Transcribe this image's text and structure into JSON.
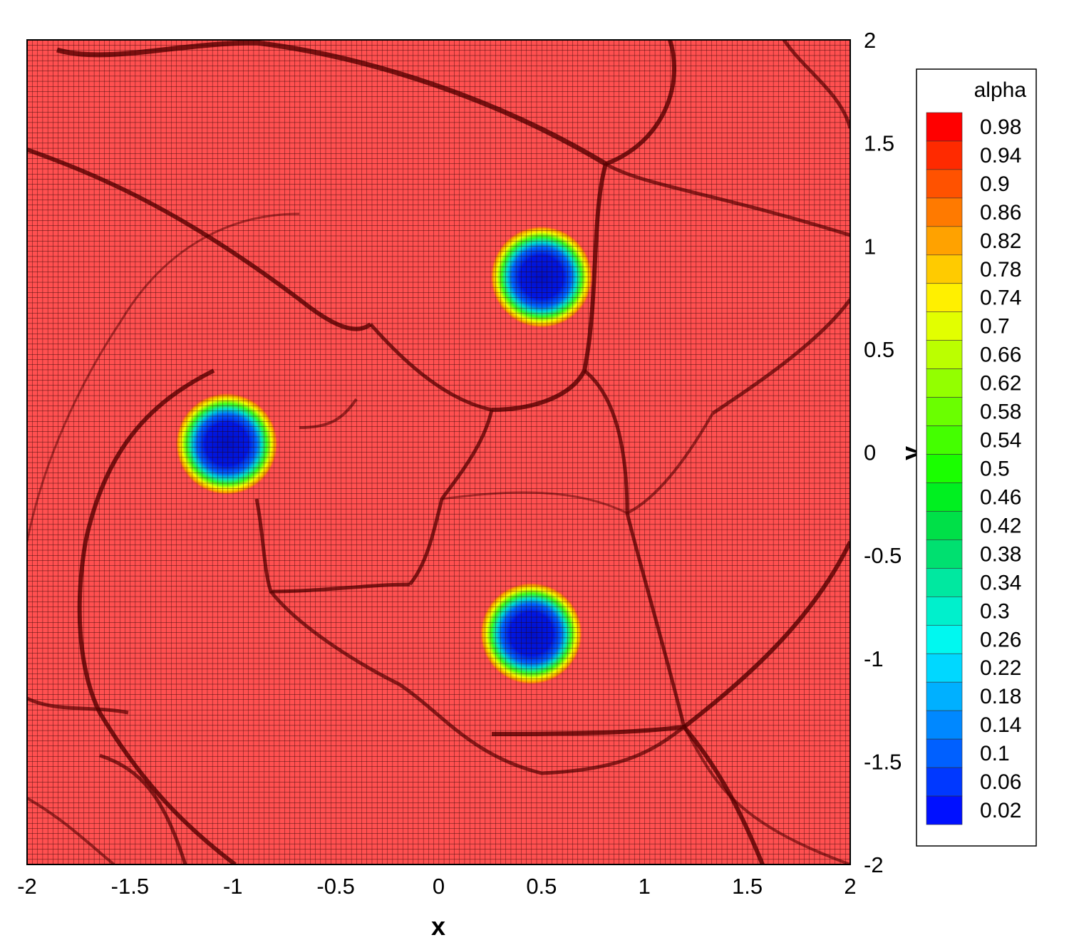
{
  "chart_data": {
    "type": "heatmap",
    "title": "",
    "xlabel": "x",
    "ylabel": "y",
    "xlim": [
      -2,
      2
    ],
    "ylim": [
      -2,
      2
    ],
    "x_ticks": [
      "-2",
      "-1.5",
      "-1",
      "-0.5",
      "0",
      "0.5",
      "1",
      "1.5",
      "2"
    ],
    "y_ticks": [
      "2",
      "1.5",
      "1",
      "0.5",
      "0",
      "-0.5",
      "-1",
      "-1.5",
      "-2"
    ],
    "grid": true,
    "grid_cells_per_axis": 160,
    "colorbar": {
      "title": "alpha",
      "placement": "right",
      "levels": [
        "0.98",
        "0.94",
        "0.9",
        "0.86",
        "0.82",
        "0.78",
        "0.74",
        "0.7",
        "0.66",
        "0.62",
        "0.58",
        "0.54",
        "0.5",
        "0.46",
        "0.42",
        "0.38",
        "0.34",
        "0.3",
        "0.26",
        "0.22",
        "0.18",
        "0.14",
        "0.1",
        "0.06",
        "0.02"
      ],
      "colors": [
        "#ff0000",
        "#ff2a00",
        "#ff5200",
        "#ff7a00",
        "#ffa200",
        "#ffcb00",
        "#fff000",
        "#e2ff00",
        "#bbff00",
        "#93ff00",
        "#6aff00",
        "#44ff00",
        "#1aff00",
        "#00f020",
        "#00e048",
        "#00e070",
        "#00e8a0",
        "#00f0cc",
        "#00f8f0",
        "#00d8ff",
        "#00b0ff",
        "#0088ff",
        "#0060ff",
        "#0038ff",
        "#0010ff"
      ]
    },
    "bubbles": [
      {
        "x": 0.5,
        "y": 0.85,
        "core_alpha": 0.02
      },
      {
        "x": -1.03,
        "y": 0.04,
        "core_alpha": 0.02
      },
      {
        "x": 0.45,
        "y": -0.88,
        "core_alpha": 0.02
      }
    ],
    "background_alpha": 0.98
  }
}
